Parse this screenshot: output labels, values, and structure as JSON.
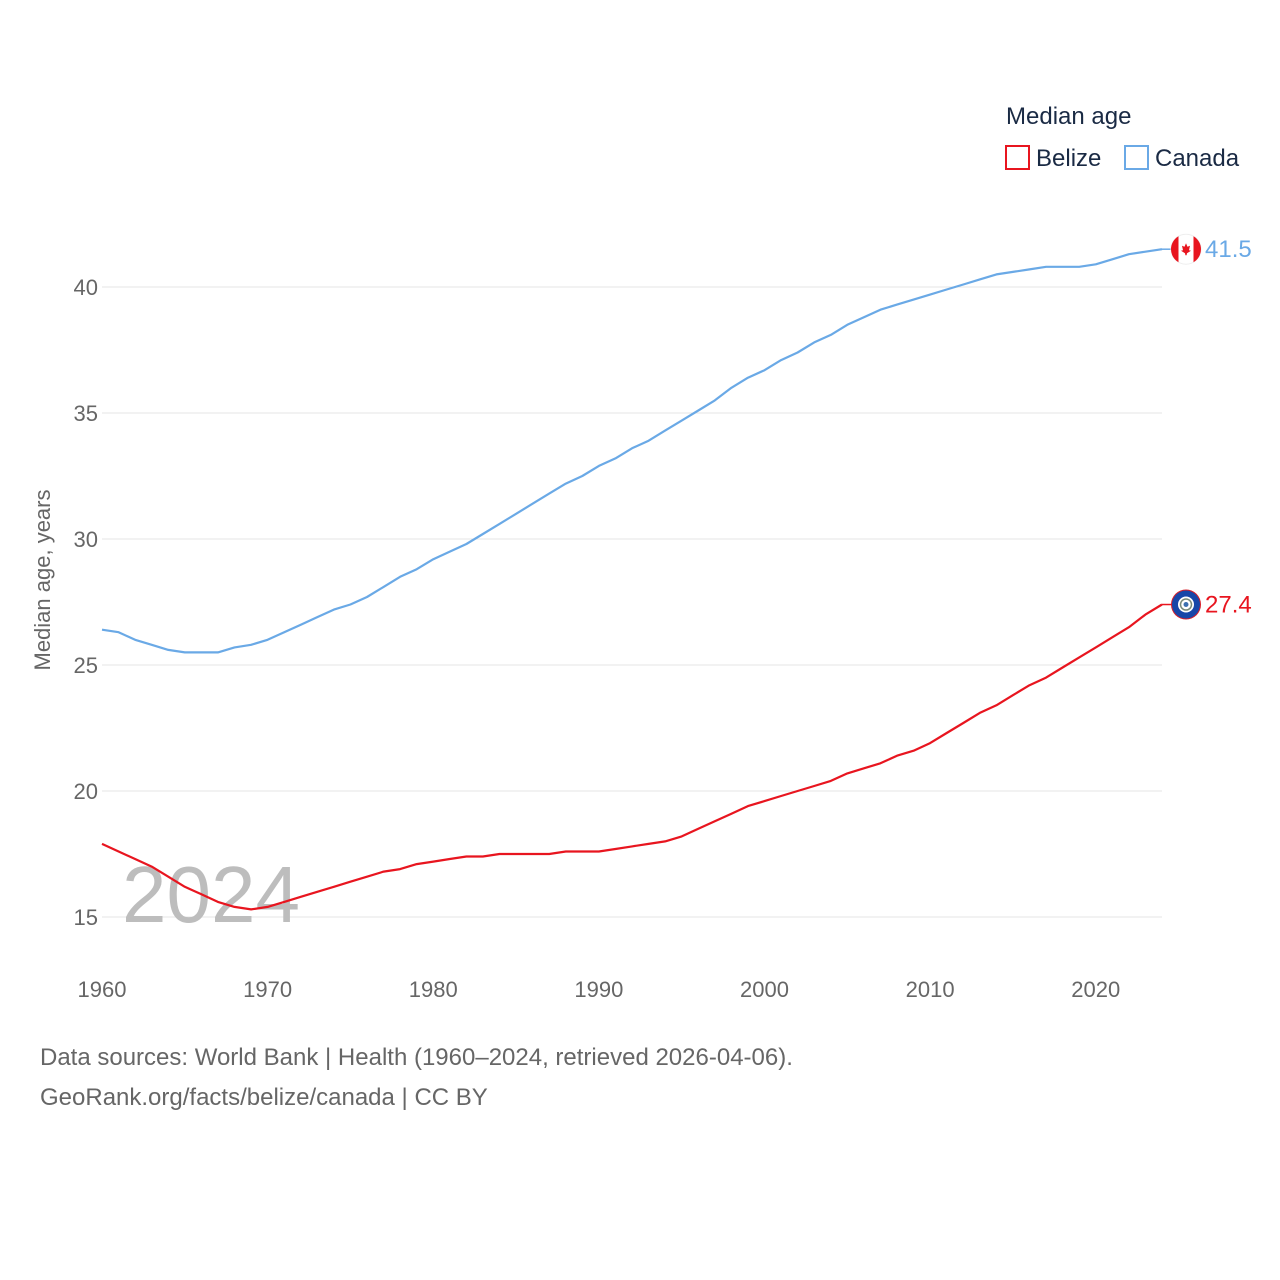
{
  "colors": {
    "belize": "#e8151f",
    "canada": "#6aa9e6",
    "grid": "#e6e6e6",
    "text": "#666666"
  },
  "year_watermark": "2024",
  "footer": {
    "line1": "Data sources: World Bank | Health (1960–2024, retrieved 2026-04-06).",
    "line2": "GeoRank.org/facts/belize/canada | CC BY"
  },
  "chart_data": {
    "type": "line",
    "legend_title": "Median age",
    "legend_position": "top-right",
    "ylabel": "Median age, years",
    "xlabel": "",
    "xlim": [
      1960,
      2024
    ],
    "ylim": [
      13,
      43
    ],
    "x_ticks": [
      1960,
      1970,
      1980,
      1990,
      2000,
      2010,
      2020
    ],
    "y_ticks": [
      15,
      20,
      25,
      30,
      35,
      40
    ],
    "grid": true,
    "x": [
      1960,
      1961,
      1962,
      1963,
      1964,
      1965,
      1966,
      1967,
      1968,
      1969,
      1970,
      1971,
      1972,
      1973,
      1974,
      1975,
      1976,
      1977,
      1978,
      1979,
      1980,
      1981,
      1982,
      1983,
      1984,
      1985,
      1986,
      1987,
      1988,
      1989,
      1990,
      1991,
      1992,
      1993,
      1994,
      1995,
      1996,
      1997,
      1998,
      1999,
      2000,
      2001,
      2002,
      2003,
      2004,
      2005,
      2006,
      2007,
      2008,
      2009,
      2010,
      2011,
      2012,
      2013,
      2014,
      2015,
      2016,
      2017,
      2018,
      2019,
      2020,
      2021,
      2022,
      2023,
      2024
    ],
    "series": [
      {
        "name": "Belize",
        "end_label": "27.4",
        "values": [
          17.9,
          17.6,
          17.3,
          17.0,
          16.6,
          16.2,
          15.9,
          15.6,
          15.4,
          15.3,
          15.4,
          15.6,
          15.8,
          16.0,
          16.2,
          16.4,
          16.6,
          16.8,
          16.9,
          17.1,
          17.2,
          17.3,
          17.4,
          17.4,
          17.5,
          17.5,
          17.5,
          17.5,
          17.6,
          17.6,
          17.6,
          17.7,
          17.8,
          17.9,
          18.0,
          18.2,
          18.5,
          18.8,
          19.1,
          19.4,
          19.6,
          19.8,
          20.0,
          20.2,
          20.4,
          20.7,
          20.9,
          21.1,
          21.4,
          21.6,
          21.9,
          22.3,
          22.7,
          23.1,
          23.4,
          23.8,
          24.2,
          24.5,
          24.9,
          25.3,
          25.7,
          26.1,
          26.5,
          27.0,
          27.4
        ]
      },
      {
        "name": "Canada",
        "end_label": "41.5",
        "values": [
          26.4,
          26.3,
          26.0,
          25.8,
          25.6,
          25.5,
          25.5,
          25.5,
          25.7,
          25.8,
          26.0,
          26.3,
          26.6,
          26.9,
          27.2,
          27.4,
          27.7,
          28.1,
          28.5,
          28.8,
          29.2,
          29.5,
          29.8,
          30.2,
          30.6,
          31.0,
          31.4,
          31.8,
          32.2,
          32.5,
          32.9,
          33.2,
          33.6,
          33.9,
          34.3,
          34.7,
          35.1,
          35.5,
          36.0,
          36.4,
          36.7,
          37.1,
          37.4,
          37.8,
          38.1,
          38.5,
          38.8,
          39.1,
          39.3,
          39.5,
          39.7,
          39.9,
          40.1,
          40.3,
          40.5,
          40.6,
          40.7,
          40.8,
          40.8,
          40.8,
          40.9,
          41.1,
          41.3,
          41.4,
          41.5
        ]
      }
    ]
  }
}
